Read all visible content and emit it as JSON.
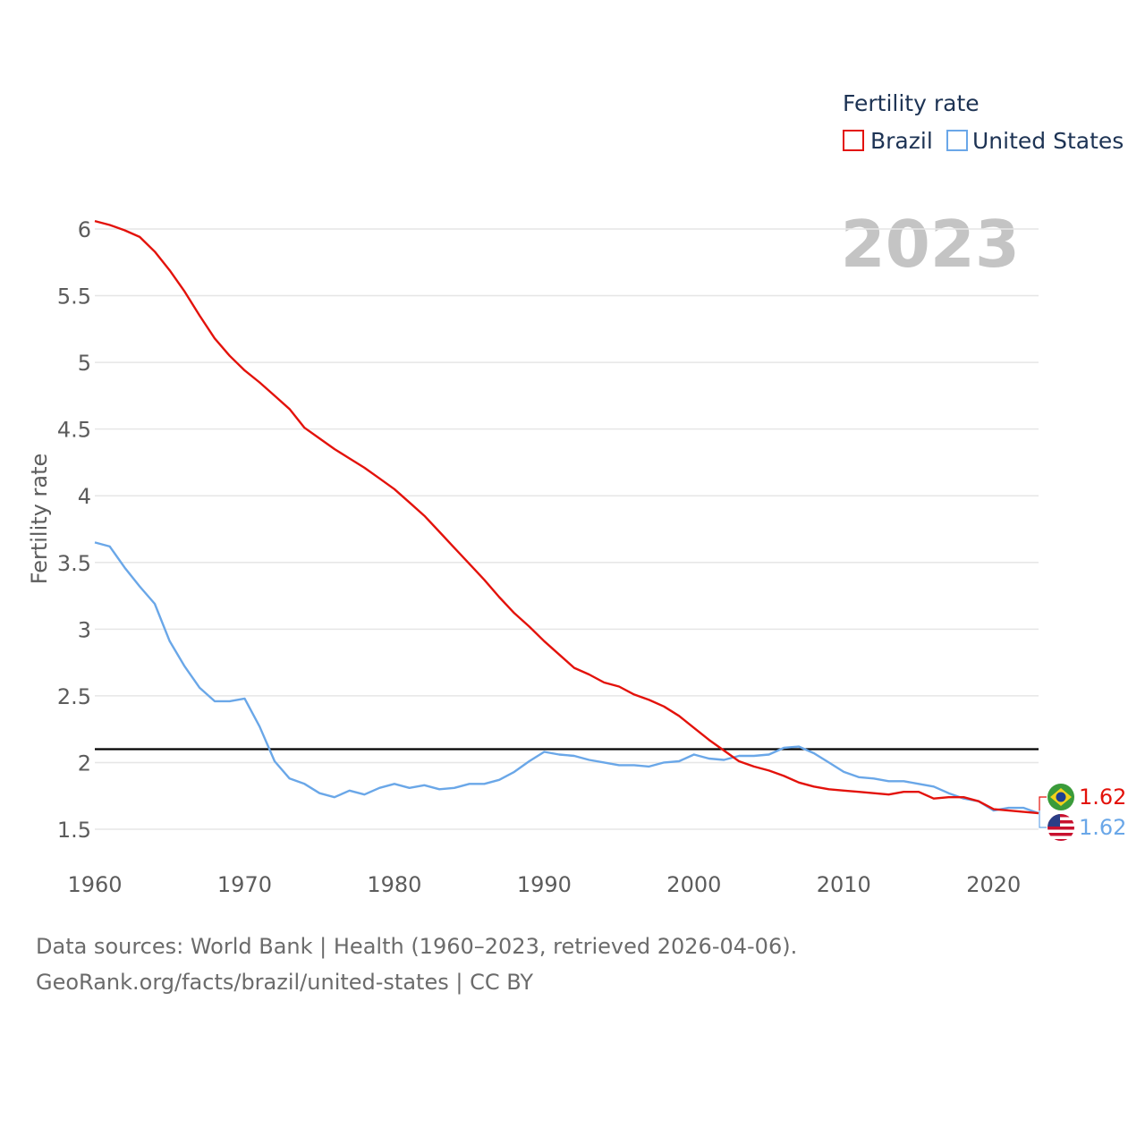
{
  "chart_data": {
    "type": "line",
    "legend_title": "Fertility rate",
    "ylabel": "Fertility rate",
    "year_label": "2023",
    "xlim": [
      1960,
      2023
    ],
    "ylim": [
      1.4,
      6.1
    ],
    "x_ticks": [
      1960,
      1970,
      1980,
      1990,
      2000,
      2010,
      2020
    ],
    "y_ticks": [
      1.5,
      2,
      2.5,
      3,
      3.5,
      4,
      4.5,
      5,
      5.5,
      6
    ],
    "reference_line": 2.1,
    "x": [
      1960,
      1961,
      1962,
      1963,
      1964,
      1965,
      1966,
      1967,
      1968,
      1969,
      1970,
      1971,
      1972,
      1973,
      1974,
      1975,
      1976,
      1977,
      1978,
      1979,
      1980,
      1981,
      1982,
      1983,
      1984,
      1985,
      1986,
      1987,
      1988,
      1989,
      1990,
      1991,
      1992,
      1993,
      1994,
      1995,
      1996,
      1997,
      1998,
      1999,
      2000,
      2001,
      2002,
      2003,
      2004,
      2005,
      2006,
      2007,
      2008,
      2009,
      2010,
      2011,
      2012,
      2013,
      2014,
      2015,
      2016,
      2017,
      2018,
      2019,
      2020,
      2021,
      2022,
      2023
    ],
    "series": [
      {
        "name": "Brazil",
        "color": "#e3120b",
        "end_label": "1.62",
        "values": [
          6.06,
          6.03,
          5.99,
          5.94,
          5.83,
          5.69,
          5.53,
          5.35,
          5.18,
          5.05,
          4.94,
          4.85,
          4.75,
          4.65,
          4.51,
          4.43,
          4.35,
          4.28,
          4.21,
          4.13,
          4.05,
          3.95,
          3.85,
          3.73,
          3.61,
          3.49,
          3.37,
          3.24,
          3.12,
          3.02,
          2.91,
          2.81,
          2.71,
          2.66,
          2.6,
          2.57,
          2.51,
          2.47,
          2.42,
          2.35,
          2.26,
          2.17,
          2.09,
          2.01,
          1.97,
          1.94,
          1.9,
          1.85,
          1.82,
          1.8,
          1.79,
          1.78,
          1.77,
          1.76,
          1.78,
          1.78,
          1.73,
          1.74,
          1.74,
          1.71,
          1.65,
          1.64,
          1.63,
          1.62
        ]
      },
      {
        "name": "United States",
        "color": "#6aa7e8",
        "end_label": "1.62",
        "values": [
          3.65,
          3.62,
          3.46,
          3.32,
          3.19,
          2.91,
          2.72,
          2.56,
          2.46,
          2.46,
          2.48,
          2.27,
          2.01,
          1.88,
          1.84,
          1.77,
          1.74,
          1.79,
          1.76,
          1.81,
          1.84,
          1.81,
          1.83,
          1.8,
          1.81,
          1.84,
          1.84,
          1.87,
          1.93,
          2.01,
          2.08,
          2.06,
          2.05,
          2.02,
          2.0,
          1.98,
          1.98,
          1.97,
          2.0,
          2.01,
          2.06,
          2.03,
          2.02,
          2.05,
          2.05,
          2.06,
          2.11,
          2.12,
          2.07,
          2.0,
          1.93,
          1.89,
          1.88,
          1.86,
          1.86,
          1.84,
          1.82,
          1.77,
          1.73,
          1.71,
          1.64,
          1.66,
          1.66,
          1.62
        ]
      }
    ]
  },
  "footer": {
    "source_line": "Data sources: World Bank | Health (1960–2023, retrieved 2026-04-06).",
    "url_line": "GeoRank.org/facts/brazil/united-states | CC BY"
  }
}
